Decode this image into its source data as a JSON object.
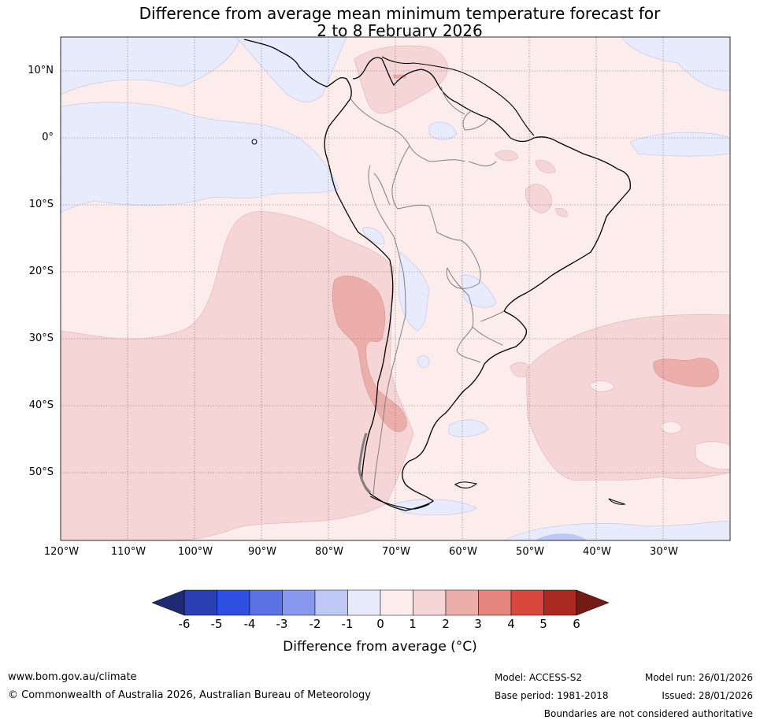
{
  "title_line1": "Difference from average mean minimum temperature forecast for",
  "title_line2": "2 to 8 February 2026",
  "lat_labels": [
    "10°N",
    "0°",
    "10°S",
    "20°S",
    "30°S",
    "40°S",
    "50°S"
  ],
  "lon_labels": [
    "120°W",
    "110°W",
    "100°W",
    "90°W",
    "80°W",
    "70°W",
    "60°W",
    "50°W",
    "40°W",
    "30°W"
  ],
  "colorbar": {
    "ticks": [
      "-6",
      "-5",
      "-4",
      "-3",
      "-2",
      "-1",
      "0",
      "1",
      "2",
      "3",
      "4",
      "5",
      "6"
    ],
    "colors": [
      "#2a3fb1",
      "#2f4fe0",
      "#5a72e6",
      "#8798ee",
      "#c0c8f5",
      "#e8ebfb",
      "#fcecec",
      "#f5d5d5",
      "#ecaeab",
      "#e6847e",
      "#d9473d",
      "#aa2a22"
    ],
    "under_color": "#1e2a72",
    "over_color": "#731b15",
    "label": "Difference from average (°C)"
  },
  "footer": {
    "website": "www.bom.gov.au/climate",
    "copyright": "© Commonwealth of Australia 2026, Australian Bureau of Meteorology",
    "model": "Model: ACCESS-S2",
    "base_period": "Base period: 1981-2018",
    "model_run": "Model run: 26/01/2026",
    "issued": "Issued: 28/01/2026",
    "disclaimer": "Boundaries are not considered authoritative"
  }
}
